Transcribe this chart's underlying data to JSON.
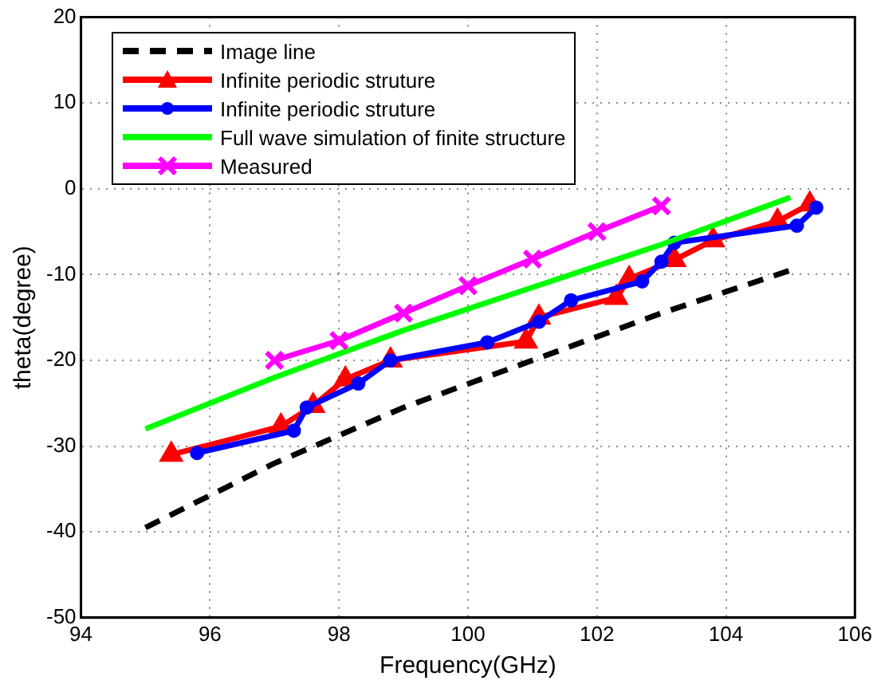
{
  "chart_data": {
    "type": "line",
    "xlabel": "Frequency(GHz)",
    "ylabel": "theta(degree)",
    "xlim": [
      94,
      106
    ],
    "xticks": [
      94,
      96,
      98,
      100,
      102,
      104,
      106
    ],
    "ylim": [
      -50,
      20
    ],
    "yticks": [
      -50,
      -40,
      -30,
      -20,
      -10,
      0,
      10,
      20
    ],
    "grid": true,
    "legend": "top left",
    "series": [
      {
        "name": "Image line",
        "color": "#000000",
        "line_style": "dashed",
        "marker": "none",
        "x": [
          95,
          97,
          99,
          101,
          103,
          105
        ],
        "values": [
          -39.5,
          -32,
          -25.5,
          -20,
          -14.5,
          -9.5
        ]
      },
      {
        "name": "Infinite periodic struture",
        "color": "#ff0000",
        "line_style": "solid",
        "marker": "triangle",
        "x": [
          95.4,
          97.1,
          97.6,
          98.1,
          98.8,
          100.9,
          101.1,
          102.3,
          102.5,
          103.2,
          103.8,
          104.8,
          105.3
        ],
        "values": [
          -31,
          -27.7,
          -25.3,
          -22.2,
          -20,
          -17.8,
          -15,
          -12.7,
          -10.5,
          -8.3,
          -6,
          -3.8,
          -1.8
        ]
      },
      {
        "name": "Infinite periodic struture",
        "color": "#0000ff",
        "line_style": "solid",
        "marker": "circle",
        "x": [
          95.8,
          97.3,
          97.5,
          98.3,
          98.8,
          100.3,
          101.1,
          101.6,
          102.7,
          103,
          103.2,
          105.1,
          105.4
        ],
        "values": [
          -30.8,
          -28.2,
          -25.5,
          -22.7,
          -20,
          -17.9,
          -15.5,
          -13,
          -10.8,
          -8.5,
          -6.3,
          -4.3,
          -2.2
        ]
      },
      {
        "name": "Full wave simulation of finite structure",
        "color": "#00ff00",
        "line_style": "solid",
        "marker": "none",
        "x": [
          95,
          97,
          99,
          101,
          103,
          105
        ],
        "values": [
          -28,
          -22,
          -16.5,
          -11.5,
          -6.5,
          -1
        ]
      },
      {
        "name": "Measured",
        "color": "#ff00ff",
        "line_style": "solid",
        "marker": "cross",
        "x": [
          97,
          98,
          99,
          100,
          101,
          102,
          103
        ],
        "values": [
          -20,
          -17.7,
          -14.5,
          -11.3,
          -8.2,
          -5,
          -2
        ]
      }
    ]
  }
}
